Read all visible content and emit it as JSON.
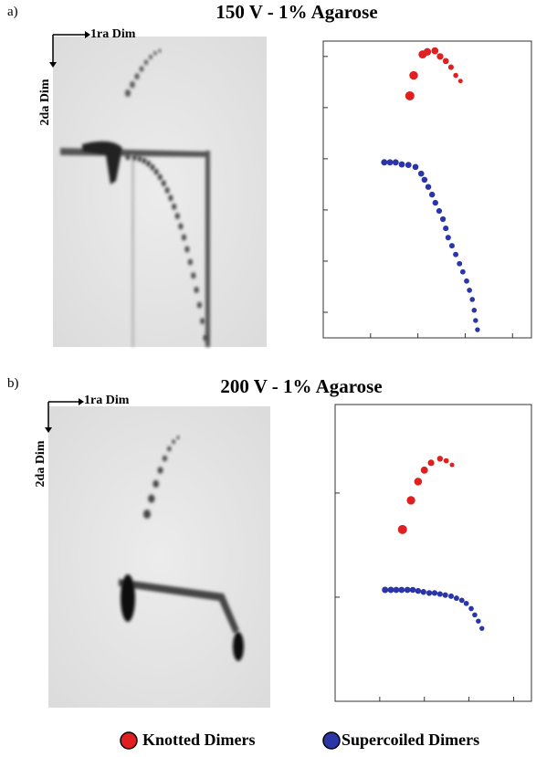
{
  "chart_data": [
    {
      "type": "scatter",
      "title": "150 V - 1% Agarose",
      "xlim": [
        0,
        4.4
      ],
      "xticks": [
        1,
        2,
        3,
        4
      ],
      "ylim": [
        0,
        5.8
      ],
      "yticks": [
        0.5,
        1.5,
        2.5,
        3.5,
        4.5,
        5.5
      ],
      "series": [
        {
          "name": "Knotted Dimers",
          "color": "#e02020",
          "x": [
            1.83,
            1.91,
            2.1,
            2.2,
            2.36,
            2.47,
            2.59,
            2.7,
            2.8,
            2.9
          ],
          "values": [
            4.73,
            5.13,
            5.54,
            5.59,
            5.61,
            5.5,
            5.41,
            5.29,
            5.13,
            5.02
          ]
        },
        {
          "name": "Supercoiled Dimers",
          "color": "#2a36a8",
          "x": [
            1.29,
            1.41,
            1.53,
            1.66,
            1.8,
            1.95,
            2.07,
            2.14,
            2.22,
            2.3,
            2.37,
            2.45,
            2.53,
            2.59,
            2.64,
            2.72,
            2.8,
            2.88,
            2.95,
            3.03,
            3.09,
            3.15,
            3.19,
            3.22,
            3.26
          ],
          "values": [
            3.43,
            3.43,
            3.43,
            3.39,
            3.38,
            3.34,
            3.21,
            3.09,
            2.95,
            2.8,
            2.64,
            2.48,
            2.32,
            2.14,
            1.96,
            1.8,
            1.63,
            1.45,
            1.29,
            1.11,
            0.93,
            0.75,
            0.54,
            0.34,
            0.16
          ]
        }
      ]
    },
    {
      "type": "scatter",
      "title": "200 V - 1% Agarose",
      "xlim": [
        0,
        4.4
      ],
      "xticks": [
        1,
        2,
        3,
        4
      ],
      "ylim": [
        0,
        2.85
      ],
      "yticks": [
        1,
        2
      ],
      "series": [
        {
          "name": "Knotted Dimers",
          "color": "#e02020",
          "x": [
            1.51,
            1.7,
            1.86,
            2.0,
            2.15,
            2.35,
            2.49,
            2.62
          ],
          "values": [
            1.65,
            1.93,
            2.11,
            2.22,
            2.29,
            2.33,
            2.31,
            2.27
          ]
        },
        {
          "name": "Supercoiled Dimers",
          "color": "#2a36a8",
          "x": [
            1.12,
            1.25,
            1.37,
            1.49,
            1.62,
            1.74,
            1.86,
            1.98,
            2.11,
            2.23,
            2.35,
            2.47,
            2.6,
            2.72,
            2.84,
            2.94,
            3.05,
            3.13,
            3.21,
            3.29
          ],
          "values": [
            1.07,
            1.07,
            1.07,
            1.07,
            1.07,
            1.07,
            1.06,
            1.05,
            1.04,
            1.04,
            1.03,
            1.02,
            1.01,
            0.99,
            0.97,
            0.94,
            0.89,
            0.83,
            0.77,
            0.7
          ]
        }
      ]
    }
  ],
  "panels": [
    {
      "label": "a)",
      "first_dim": "1ra Dim",
      "second_dim": "2da Dim"
    },
    {
      "label": "b)",
      "first_dim": "1ra Dim",
      "second_dim": "2da Dim"
    }
  ]
}
